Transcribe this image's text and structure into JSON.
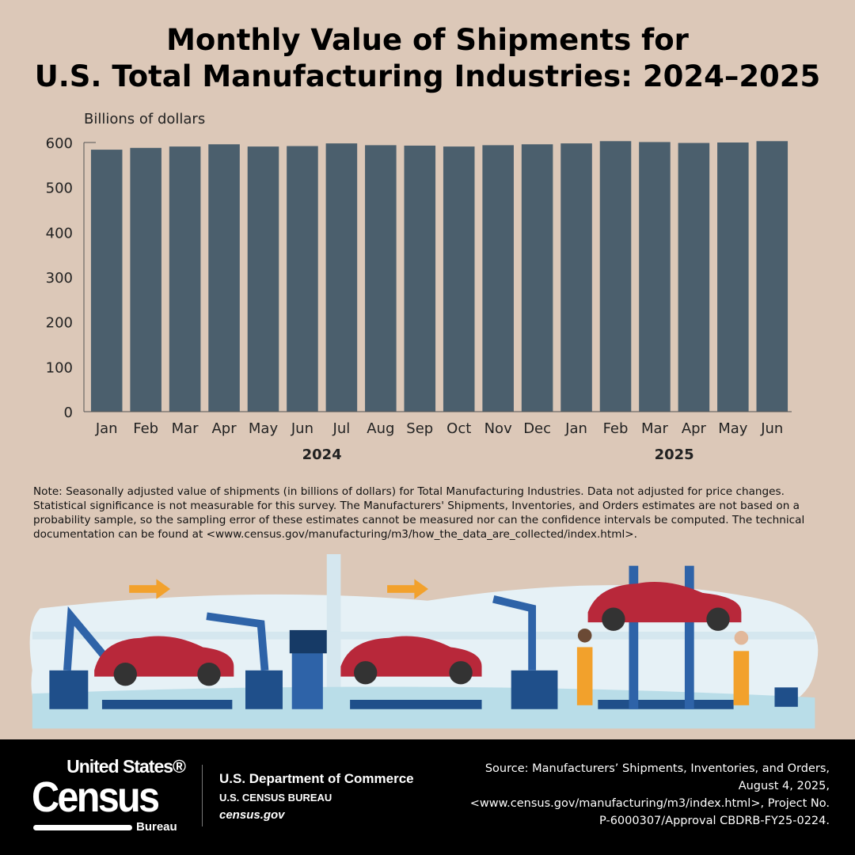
{
  "title_line1": "Monthly Value of Shipments for",
  "title_line2": "U.S. Total Manufacturing Industries: 2024–2025",
  "chart_data": {
    "type": "bar",
    "ylabel": "Billions of dollars",
    "ylim": [
      0,
      600
    ],
    "yticks": [
      0,
      100,
      200,
      300,
      400,
      500,
      600
    ],
    "categories": [
      "Jan",
      "Feb",
      "Mar",
      "Apr",
      "May",
      "Jun",
      "Jul",
      "Aug",
      "Sep",
      "Oct",
      "Nov",
      "Dec",
      "Jan",
      "Feb",
      "Mar",
      "Apr",
      "May",
      "Jun"
    ],
    "year_labels": [
      {
        "label": "2024",
        "span": [
          0,
          11
        ]
      },
      {
        "label": "2025",
        "span": [
          12,
          17
        ]
      }
    ],
    "values": [
      584,
      588,
      591,
      596,
      591,
      592,
      598,
      594,
      593,
      591,
      594,
      596,
      598,
      603,
      601,
      599,
      600,
      603
    ],
    "bar_color": "#4b5f6d",
    "grid": false
  },
  "note": "Note: Seasonally adjusted value of shipments (in billions of dollars) for Total Manufacturing Industries. Data not adjusted for price changes. Statistical significance is not measurable for this survey. The Manufacturers' Shipments, Inventories, and Orders estimates are not based on a probability sample, so the sampling error of these estimates cannot be measured nor can the confidence intervals be computed. The technical documentation can be found at <www.census.gov/manufacturing/m3/how_the_data_are_collected/index.html>.",
  "footer": {
    "logo_text": "United States® Census Bureau",
    "logo_us": "United States®",
    "logo_census": "Census",
    "logo_bureau": "Bureau",
    "dept": "U.S. Department of Commerce",
    "bureau": "U.S. CENSUS BUREAU",
    "site": "census.gov",
    "source": "Source: Manufacturers’ Shipments, Inventories, and Orders, August 4, 2025, <www.census.gov/manufacturing/m3/index.html>, Project No. P-6000307/Approval CBDRB-FY25-0224."
  },
  "colors": {
    "background": "#dcc8b8",
    "bars": "#4b5f6d",
    "footer": "#000000",
    "car": "#b8283a",
    "robot": "#2e63a8",
    "arrow": "#f2a12c"
  }
}
